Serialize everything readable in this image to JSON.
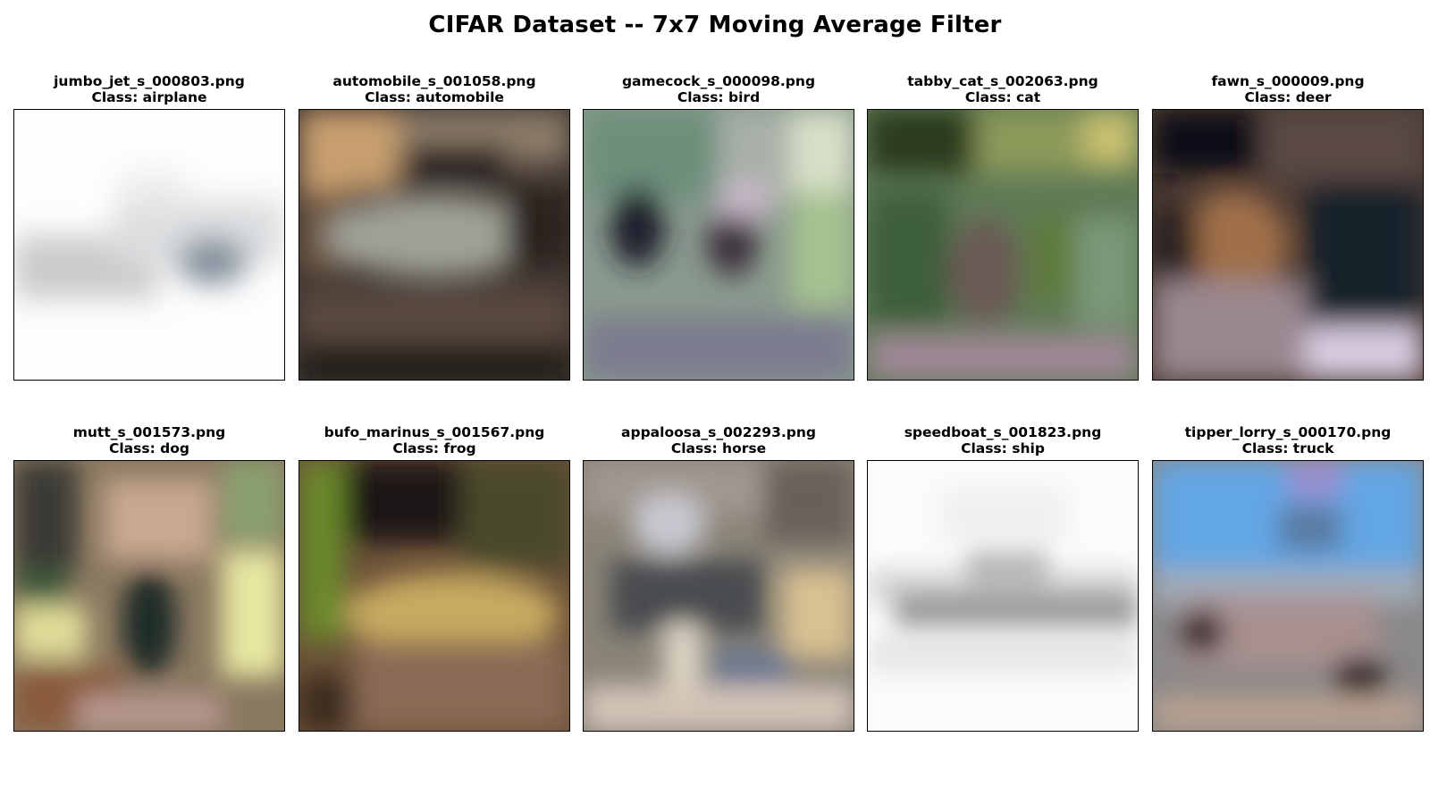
{
  "figure": {
    "title": "CIFAR Dataset -- 7x7 Moving Average Filter"
  },
  "panels": [
    {
      "filename": "jumbo_jet_s_000803.png",
      "class_label": "Class: airplane"
    },
    {
      "filename": "automobile_s_001058.png",
      "class_label": "Class: automobile"
    },
    {
      "filename": "gamecock_s_000098.png",
      "class_label": "Class: bird"
    },
    {
      "filename": "tabby_cat_s_002063.png",
      "class_label": "Class: cat"
    },
    {
      "filename": "fawn_s_000009.png",
      "class_label": "Class: deer"
    },
    {
      "filename": "mutt_s_001573.png",
      "class_label": "Class: dog"
    },
    {
      "filename": "bufo_marinus_s_001567.png",
      "class_label": "Class: frog"
    },
    {
      "filename": "appaloosa_s_002293.png",
      "class_label": "Class: horse"
    },
    {
      "filename": "speedboat_s_001823.png",
      "class_label": "Class: ship"
    },
    {
      "filename": "tipper_lorry_s_000170.png",
      "class_label": "Class: truck"
    }
  ]
}
